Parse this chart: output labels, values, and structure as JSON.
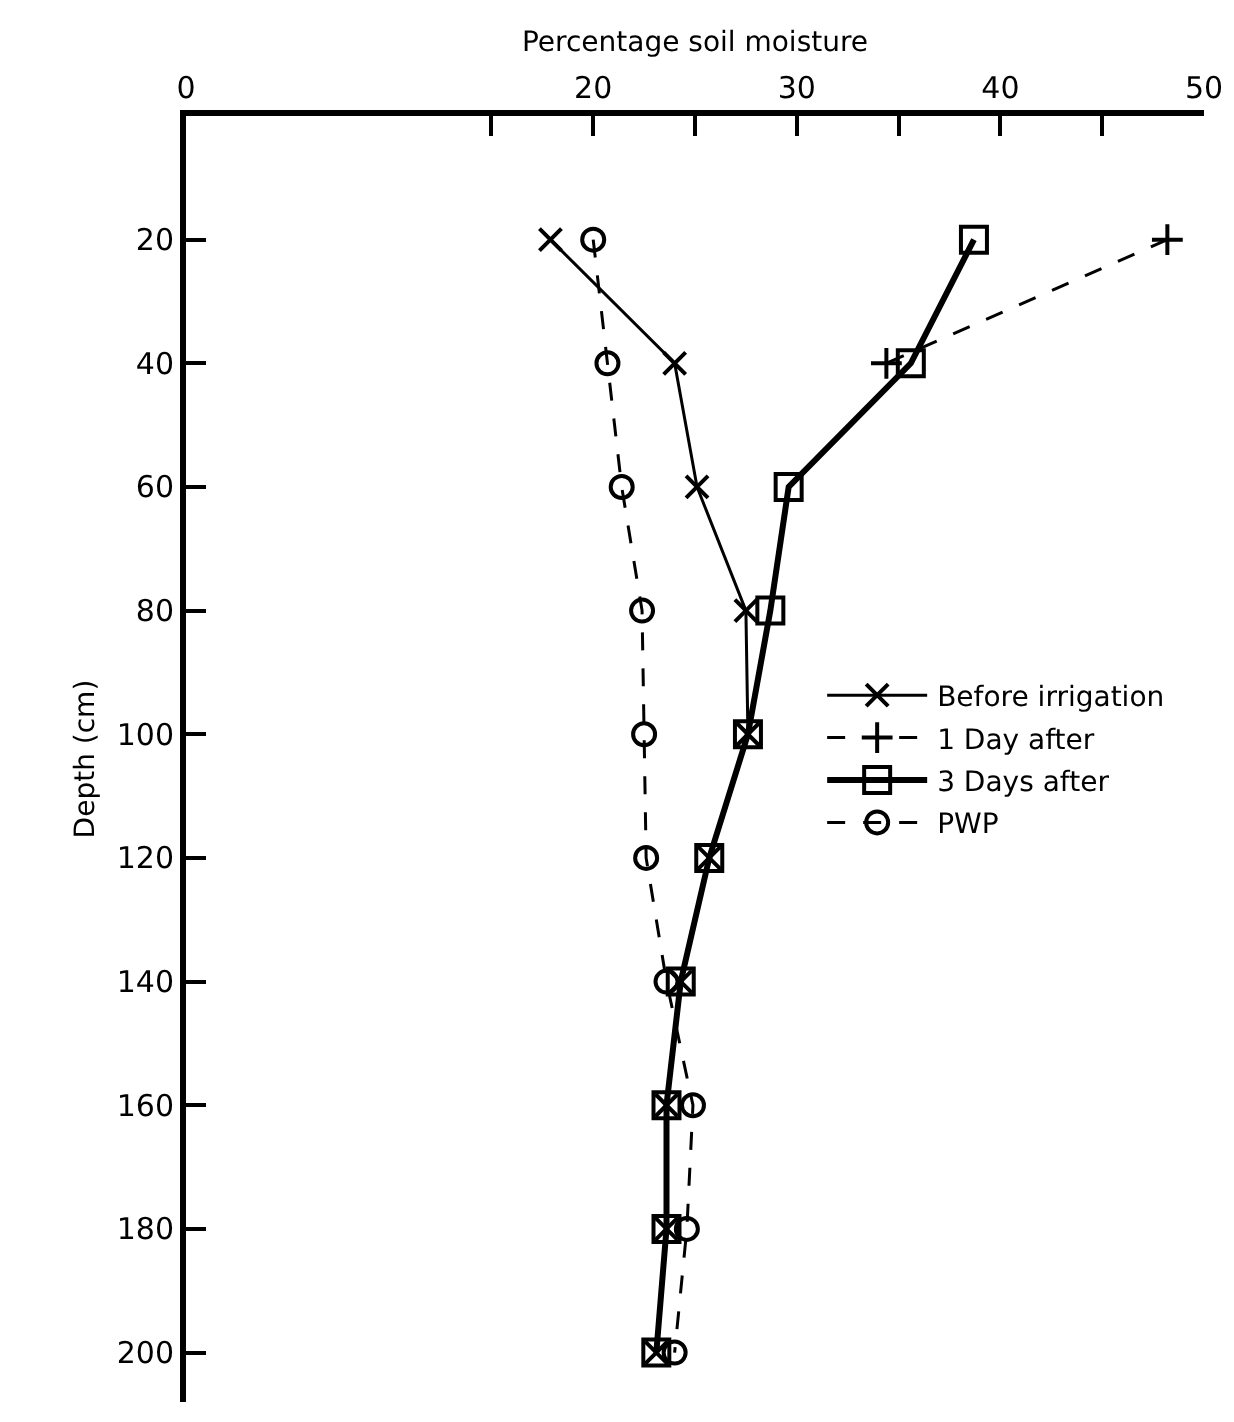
{
  "chart_data": {
    "type": "line",
    "xlabel": "Percentage soil moisture",
    "ylabel": "Depth (cm)",
    "xlim": [
      0,
      50
    ],
    "xticks": [
      0,
      {
        "value": 15,
        "label": null
      },
      20,
      {
        "value": 25,
        "label": null
      },
      30,
      {
        "value": 35,
        "label": null
      },
      40,
      {
        "value": 45,
        "label": null
      },
      50
    ],
    "ylim": [
      208,
      0
    ],
    "yticks": [
      20,
      40,
      60,
      80,
      100,
      120,
      140,
      160,
      180,
      200
    ],
    "grid": false,
    "legend": "right",
    "series": [
      {
        "name": "Before irrigation",
        "color": "#000000",
        "marker": "x",
        "line_style": "solid",
        "x": [
          17.9,
          24.0,
          25.1,
          27.5,
          27.6,
          25.7,
          24.3,
          23.6,
          23.6,
          23.1
        ],
        "values": [
          20,
          40,
          60,
          80,
          100,
          120,
          140,
          160,
          180,
          200
        ]
      },
      {
        "name": "1 Day after",
        "color": "#000000",
        "marker": "cross",
        "line_style": "dashed",
        "x": [
          48.2,
          34.4
        ],
        "values": [
          20,
          40
        ]
      },
      {
        "name": "3 Days after",
        "color": "#000000",
        "marker": "square",
        "line_style": "solid",
        "x": [
          38.7,
          35.6,
          29.6,
          28.7,
          27.6,
          25.7,
          24.3,
          23.6,
          23.6,
          23.1
        ],
        "values": [
          20,
          40,
          60,
          80,
          100,
          120,
          140,
          160,
          180,
          200
        ]
      },
      {
        "name": "PWP",
        "color": "#000000",
        "marker": "circle",
        "line_style": "dashed",
        "x": [
          20.0,
          20.7,
          21.4,
          22.4,
          22.5,
          22.6,
          23.6,
          24.9,
          24.6,
          24.0
        ],
        "values": [
          20,
          40,
          60,
          80,
          100,
          120,
          140,
          160,
          180,
          200
        ]
      }
    ]
  }
}
